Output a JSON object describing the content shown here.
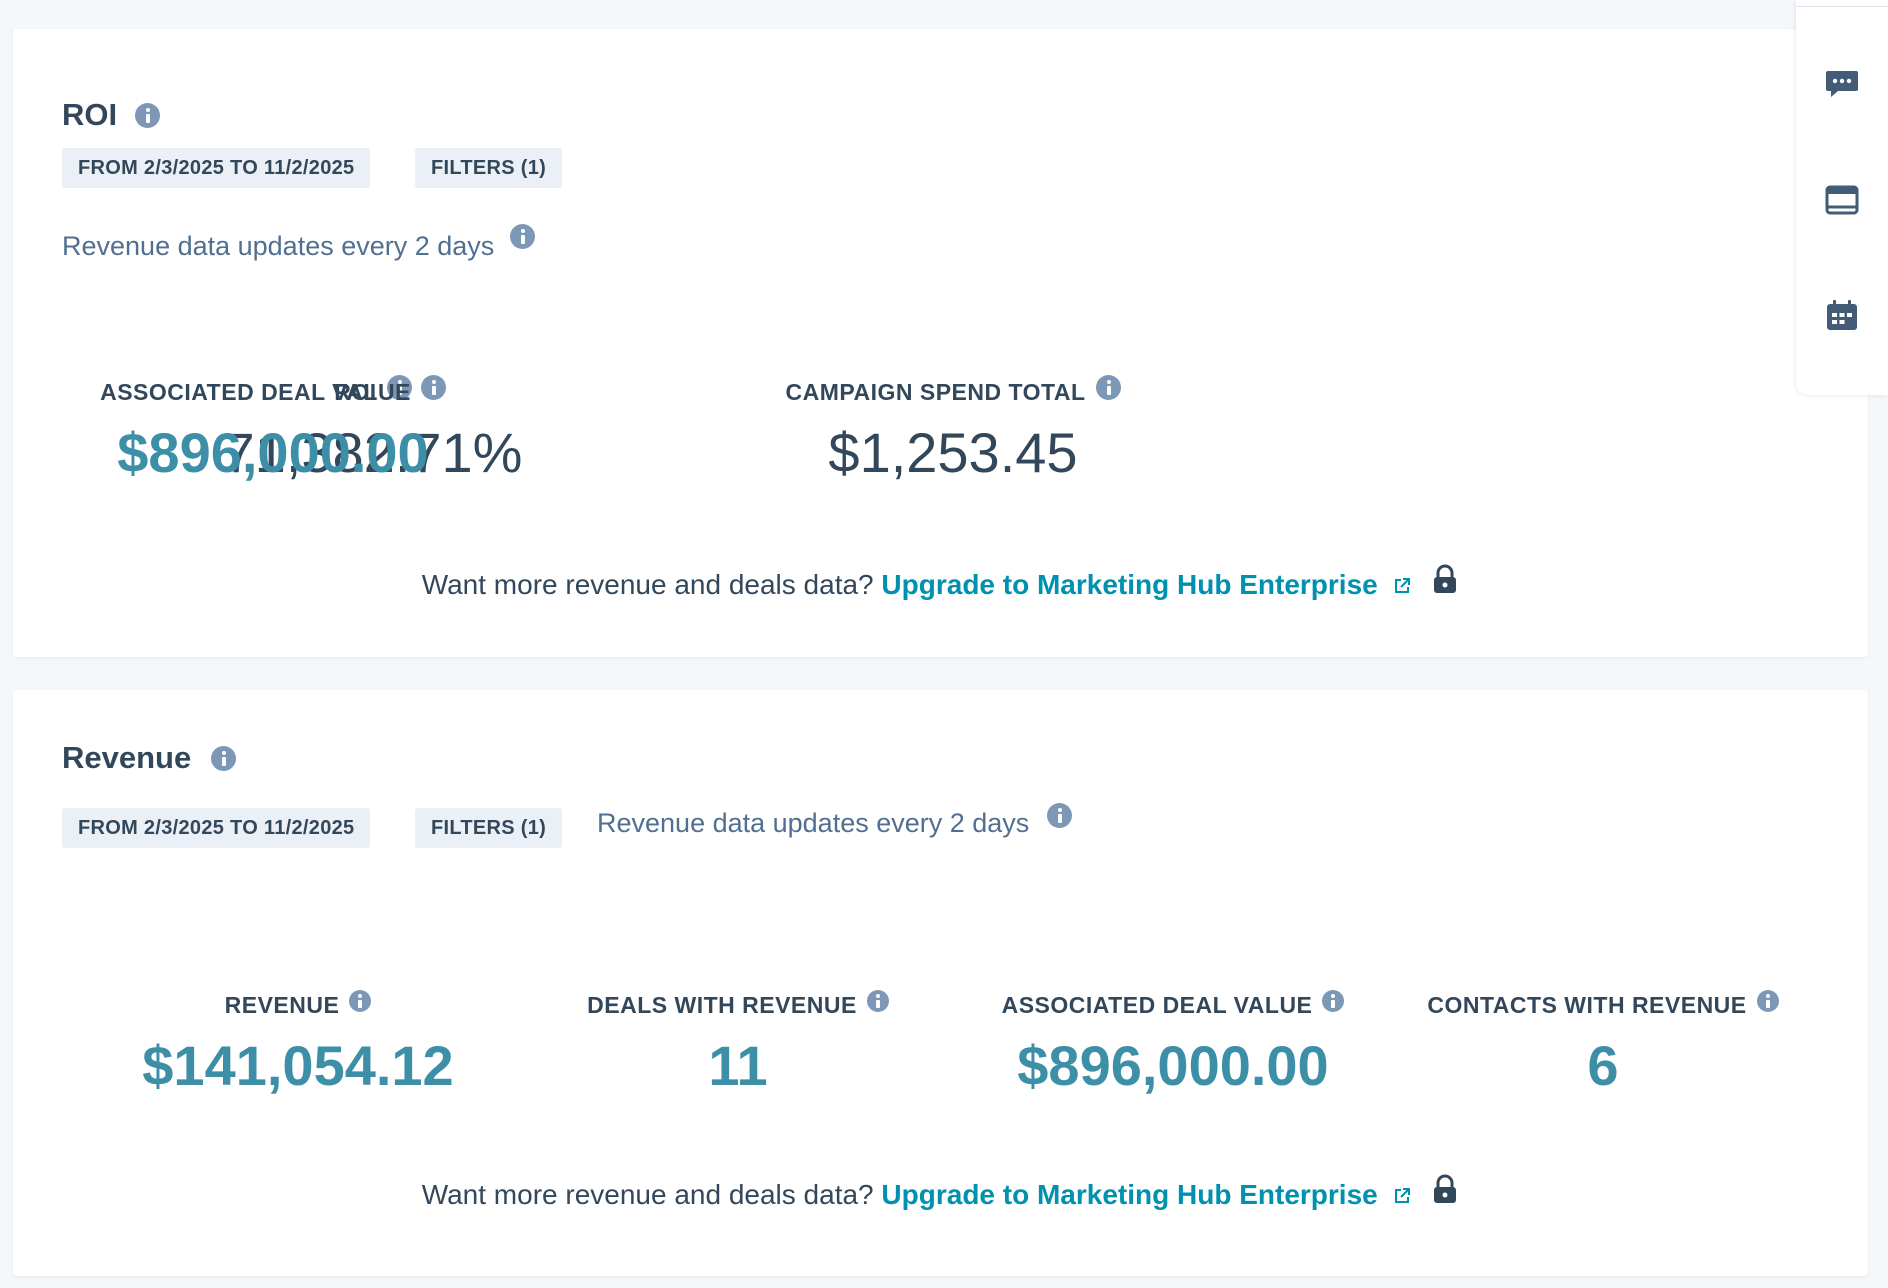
{
  "roi_section": {
    "title": "ROI",
    "date_range": "FROM 2/3/2025 TO 11/2/2025",
    "filters": "FILTERS (1)",
    "note": "Revenue data updates every 2 days",
    "metrics": [
      {
        "label": "ROI",
        "value": "71,382.71%"
      },
      {
        "label": "CAMPAIGN SPEND TOTAL",
        "value": "$1,253.45"
      },
      {
        "label": "ASSOCIATED DEAL VALUE",
        "value": "$896,000.00"
      }
    ],
    "upsell_text": "Want more revenue and deals data?",
    "upsell_link": "Upgrade to Marketing Hub Enterprise"
  },
  "revenue_section": {
    "title": "Revenue",
    "date_range": "FROM 2/3/2025 TO 11/2/2025",
    "filters": "FILTERS (1)",
    "note": "Revenue data updates every 2 days",
    "metrics": [
      {
        "label": "REVENUE",
        "value": "$141,054.12"
      },
      {
        "label": "DEALS WITH REVENUE",
        "value": "11"
      },
      {
        "label": "ASSOCIATED DEAL VALUE",
        "value": "$896,000.00"
      },
      {
        "label": "CONTACTS WITH REVENUE",
        "value": "6"
      }
    ],
    "upsell_text": "Want more revenue and deals data?",
    "upsell_link": "Upgrade to Marketing Hub Enterprise"
  },
  "side_rail": {
    "icons": [
      "chat-icon",
      "inbox-icon",
      "calendar-icon"
    ]
  },
  "colors": {
    "accent": "#3d8fa8",
    "link": "#0091ae",
    "text": "#33475b",
    "info_icon": "#7c98b6",
    "pill_bg": "#eaf0f6"
  }
}
